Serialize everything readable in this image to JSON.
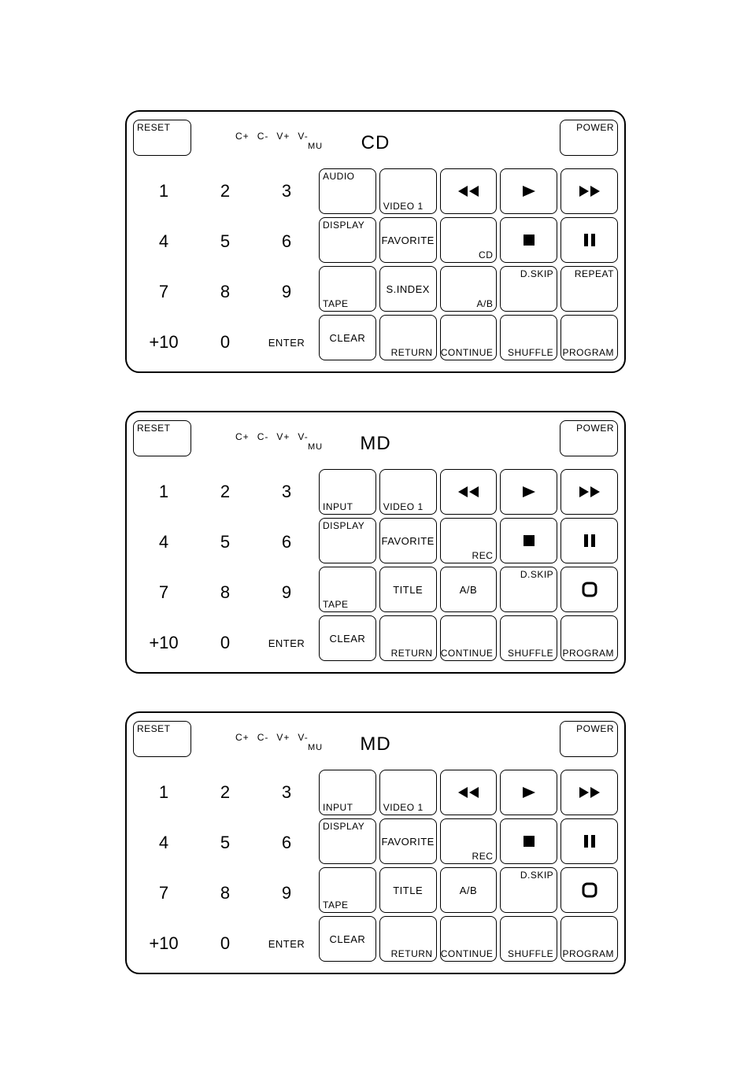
{
  "colors": {
    "fg": "#000000",
    "bg": "#ffffff",
    "line": "#000000"
  },
  "common": {
    "reset": "RESET",
    "power": "POWER",
    "adjust": [
      "C+",
      "C-",
      "V+",
      "V-"
    ],
    "mu": "MU",
    "numbers": [
      "1",
      "2",
      "3",
      "4",
      "5",
      "6",
      "7",
      "8",
      "9",
      "+10",
      "0",
      "ENTER"
    ]
  },
  "remotes": [
    {
      "mode": "CD",
      "funcs": [
        {
          "tl": "AUDIO",
          "br": "",
          "cc": "",
          "icon": ""
        },
        {
          "bl": "VIDEO 1",
          "cc": "",
          "icon": ""
        },
        {
          "icon": "rew"
        },
        {
          "icon": "play"
        },
        {
          "icon": "ffwd"
        },
        {
          "tl": "DISPLAY"
        },
        {
          "cc": "FAVORITE"
        },
        {
          "br": "CD"
        },
        {
          "icon": "stop"
        },
        {
          "icon": "pause"
        },
        {
          "bl": "TAPE"
        },
        {
          "cc": "S.INDEX"
        },
        {
          "br": "A/B"
        },
        {
          "tr": "D.SKIP"
        },
        {
          "tr": "REPEAT"
        },
        {
          "cc": "CLEAR"
        },
        {
          "br": "RETURN"
        },
        {
          "br": "CONTINUE"
        },
        {
          "br": "SHUFFLE"
        },
        {
          "br": "PROGRAM"
        }
      ]
    },
    {
      "mode": "MD",
      "funcs": [
        {
          "bl": "INPUT"
        },
        {
          "bl": "VIDEO 1"
        },
        {
          "icon": "rew"
        },
        {
          "icon": "play"
        },
        {
          "icon": "ffwd"
        },
        {
          "tl": "DISPLAY"
        },
        {
          "cc": "FAVORITE"
        },
        {
          "br": "REC"
        },
        {
          "icon": "stop"
        },
        {
          "icon": "pause"
        },
        {
          "bl": "TAPE"
        },
        {
          "cc": "TITLE"
        },
        {
          "cc": "A/B"
        },
        {
          "tr": "D.SKIP"
        },
        {
          "icon": "rec"
        },
        {
          "cc": "CLEAR"
        },
        {
          "br": "RETURN"
        },
        {
          "br": "CONTINUE"
        },
        {
          "br": "SHUFFLE"
        },
        {
          "br": "PROGRAM"
        }
      ]
    },
    {
      "mode": "MD",
      "funcs": [
        {
          "bl": "INPUT"
        },
        {
          "bl": "VIDEO 1"
        },
        {
          "icon": "rew"
        },
        {
          "icon": "play"
        },
        {
          "icon": "ffwd"
        },
        {
          "tl": "DISPLAY"
        },
        {
          "cc": "FAVORITE"
        },
        {
          "br": "REC"
        },
        {
          "icon": "stop"
        },
        {
          "icon": "pause"
        },
        {
          "bl": "TAPE"
        },
        {
          "cc": "TITLE"
        },
        {
          "cc": "A/B"
        },
        {
          "tr": "D.SKIP"
        },
        {
          "icon": "rec"
        },
        {
          "cc": "CLEAR"
        },
        {
          "br": "RETURN"
        },
        {
          "br": "CONTINUE"
        },
        {
          "br": "SHUFFLE"
        },
        {
          "br": "PROGRAM"
        }
      ]
    }
  ]
}
